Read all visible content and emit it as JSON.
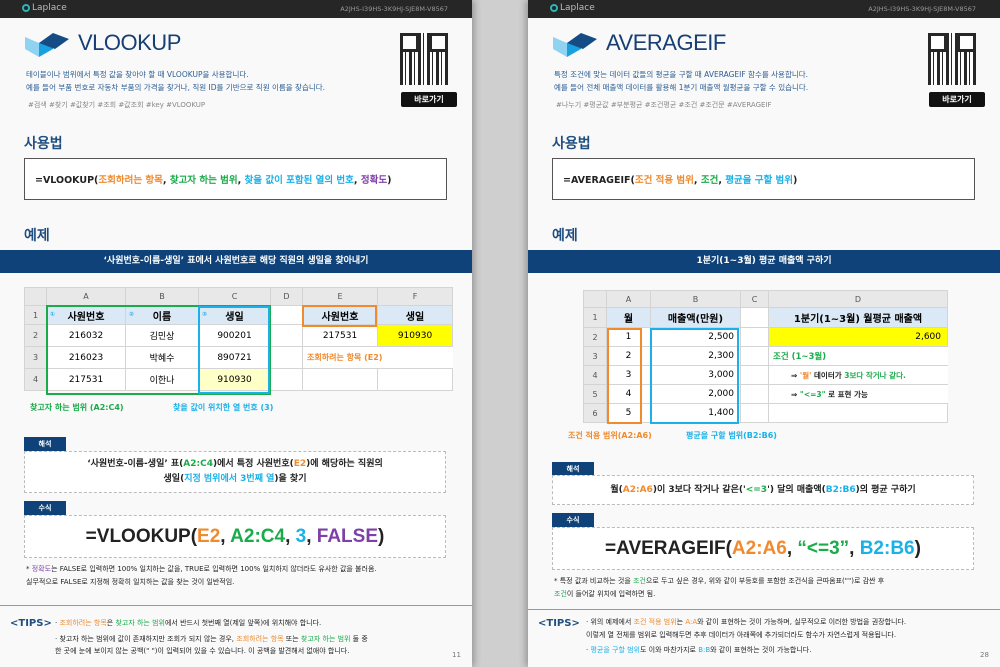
{
  "colors": {
    "navy": "#0e4279",
    "orange": "#f08a2c",
    "green": "#1aab4b",
    "blue": "#1ab0e8",
    "purple": "#7e3fa8",
    "yellow": "#ffff00"
  },
  "header": {
    "brand": "Laplace",
    "code": "A2JHS-I39HS-3K9HJ-SJE8M-V8567"
  },
  "left": {
    "title": "VLOOKUP",
    "desc": [
      "테이블이나 범위에서 특정 값을 찾아야 할 때 VLOOKUP을 사용합니다.",
      "예를 들어 부품 번호로 자동차 부품의 가격을 찾거나, 직원 ID를 기반으로 직원 이름을 찾습니다."
    ],
    "tags": "#검색 #찾기 #값찾기 #조회 #값조회 #key #VLOOKUP",
    "go_button": "바로가기",
    "usage_heading": "사용법",
    "syntax": [
      {
        "t": "=VLOOKUP(",
        "c": "k"
      },
      {
        "t": "조회하려는 항목",
        "c": "o"
      },
      {
        "t": ", ",
        "c": "k"
      },
      {
        "t": "찾고자 하는 범위",
        "c": "g"
      },
      {
        "t": ", ",
        "c": "k"
      },
      {
        "t": "찾을 값이 포함된 열의 번호",
        "c": "b"
      },
      {
        "t": ", ",
        "c": "k"
      },
      {
        "t": "정확도",
        "c": "p"
      },
      {
        "t": ")",
        "c": "k"
      }
    ],
    "example_heading": "예제",
    "banner": "‘사원번호-이름-생일’ 표에서 사원번호로 해당 직원의 생일을 찾아내기",
    "sheet": {
      "cols": [
        "A",
        "B",
        "C",
        "D",
        "E",
        "F"
      ],
      "rows": [
        {
          "n": "1",
          "cells": [
            "사원번호",
            "이름",
            "생일",
            "",
            "사원번호",
            "생일"
          ]
        },
        {
          "n": "2",
          "cells": [
            "216032",
            "김민상",
            "900201",
            "",
            "217531",
            "910930"
          ]
        },
        {
          "n": "3",
          "cells": [
            "216023",
            "박혜수",
            "890721",
            "",
            "조회하려는 항목 (E2)",
            ""
          ]
        },
        {
          "n": "4",
          "cells": [
            "217531",
            "이한나",
            "910930",
            "",
            "",
            ""
          ]
        }
      ],
      "markers": [
        "①",
        "②",
        "③"
      ]
    },
    "caption_range": "찾고자 하는 범위 (A2:C4)",
    "caption_col": "찾을 값이 위치한 열 번호 (3)",
    "interp_tag": "해석",
    "interp": [
      {
        "t": "‘사원번호-이름-생일’ 표(",
        "c": "k"
      },
      {
        "t": "A2:C4",
        "c": "g"
      },
      {
        "t": ")에서 특정 사원번호(",
        "c": "k"
      },
      {
        "t": "E2",
        "c": "o"
      },
      {
        "t": ")에 해당하는 직원의",
        "c": "k"
      },
      {
        "t": "\n생일(",
        "c": "k"
      },
      {
        "t": "지정 범위에서 3번째 열",
        "c": "b"
      },
      {
        "t": ")을 찾기",
        "c": "k"
      }
    ],
    "formula_tag": "수식",
    "formula": [
      {
        "t": "=VLOOKUP(",
        "c": "k"
      },
      {
        "t": "E2",
        "c": "o"
      },
      {
        "t": ", ",
        "c": "k"
      },
      {
        "t": "A2:C4",
        "c": "g"
      },
      {
        "t": ", ",
        "c": "k"
      },
      {
        "t": "3",
        "c": "b"
      },
      {
        "t": ", ",
        "c": "k"
      },
      {
        "t": "FALSE",
        "c": "p"
      },
      {
        "t": ")",
        "c": "k"
      }
    ],
    "note": [
      {
        "t": "* ",
        "c": "k"
      },
      {
        "t": "정확도",
        "c": "p"
      },
      {
        "t": "는 FALSE로 입력하면 100% 일치하는 값을, TRUE로 입력하면 100% 일치하지 않더라도 유사한 값을 불러옴.\n실무적으로 FALSE로 지정해 정확히 일치하는 값을 찾는 것이 일반적임.",
        "c": "k"
      }
    ],
    "tips_label": "<TIPS>",
    "tips": [
      [
        {
          "t": "· ",
          "c": "k"
        },
        {
          "t": "조회하려는 항목",
          "c": "o"
        },
        {
          "t": "은 ",
          "c": "k"
        },
        {
          "t": "찾고자 하는 범위",
          "c": "g"
        },
        {
          "t": "에서 반드시 첫번째 열(제일 앞쪽)에 위치해야 합니다.",
          "c": "k"
        }
      ],
      [
        {
          "t": "· 찾고자 하는 범위에 값이 존재하지만 조회가 되지 않는 경우, ",
          "c": "k"
        },
        {
          "t": "조회하려는 항목",
          "c": "o"
        },
        {
          "t": " 또는 ",
          "c": "k"
        },
        {
          "t": "찾고자 하는 범위",
          "c": "g"
        },
        {
          "t": " 둘 중\n  한 곳에 눈에 보이지 않는 공백(\" \")이 입력되어 있을 수 있습니다. 이 공백을 발견해서 없애야 합니다.",
          "c": "k"
        }
      ]
    ],
    "page_number": "11"
  },
  "right": {
    "title": "AVERAGEIF",
    "desc": [
      "특정 조건에 맞는 데이터 값들의 평균을 구할 때 AVERAGEIF 함수를 사용합니다.",
      "예를 들어 전체 매출액 데이터를 활용해 1분기 매출액 월평균을 구할 수 있습니다."
    ],
    "tags": "#나누기 #평균값 #부분평균 #조건평균 #조건 #조건문 #AVERAGEIF",
    "go_button": "바로가기",
    "usage_heading": "사용법",
    "syntax": [
      {
        "t": "=AVERAGEIF(",
        "c": "k"
      },
      {
        "t": "조건 적용 범위",
        "c": "o"
      },
      {
        "t": ", ",
        "c": "k"
      },
      {
        "t": "조건",
        "c": "g"
      },
      {
        "t": ", ",
        "c": "k"
      },
      {
        "t": "평균을 구할 범위",
        "c": "b"
      },
      {
        "t": ")",
        "c": "k"
      }
    ],
    "example_heading": "예제",
    "banner": "1분기(1~3월) 평균 매출액 구하기",
    "sheet": {
      "cols": [
        "A",
        "B",
        "C",
        "D"
      ],
      "rows": [
        {
          "n": "1",
          "cells": [
            "월",
            "매출액(만원)",
            "",
            "1분기(1~3월) 월평균 매출액"
          ]
        },
        {
          "n": "2",
          "cells": [
            "1",
            "2,500",
            "",
            "2,600"
          ]
        },
        {
          "n": "3",
          "cells": [
            "2",
            "2,300",
            "",
            ""
          ]
        },
        {
          "n": "4",
          "cells": [
            "3",
            "3,000",
            "",
            ""
          ]
        },
        {
          "n": "5",
          "cells": [
            "4",
            "2,000",
            "",
            ""
          ]
        },
        {
          "n": "6",
          "cells": [
            "5",
            "1,400",
            "",
            ""
          ]
        }
      ],
      "cond_title": "조건 (1~3월)",
      "cond_line1": [
        {
          "t": "⇒ ",
          "c": "k"
        },
        {
          "t": "'월'",
          "c": "o"
        },
        {
          "t": " 데이터가 ",
          "c": "k"
        },
        {
          "t": "3보다 작거나 같다.",
          "c": "g"
        }
      ],
      "cond_line2": [
        {
          "t": "⇒ ",
          "c": "k"
        },
        {
          "t": "\"<=3\"",
          "c": "g"
        },
        {
          "t": " 로 표현 가능",
          "c": "k"
        }
      ]
    },
    "caption_range": "조건 적용 범위(A2:A6)",
    "caption_avg": "평균을 구할 범위(B2:B6)",
    "interp_tag": "해석",
    "interp": [
      {
        "t": "월(",
        "c": "k"
      },
      {
        "t": "A2:A6",
        "c": "o"
      },
      {
        "t": ")이 3보다 작거나 같은('",
        "c": "k"
      },
      {
        "t": "<=3",
        "c": "g"
      },
      {
        "t": "') 달의 매출액(",
        "c": "k"
      },
      {
        "t": "B2:B6",
        "c": "b"
      },
      {
        "t": ")의 평균 구하기",
        "c": "k"
      }
    ],
    "formula_tag": "수식",
    "formula": [
      {
        "t": "=AVERAGEIF(",
        "c": "k"
      },
      {
        "t": "A2:A6",
        "c": "o"
      },
      {
        "t": ", ",
        "c": "k"
      },
      {
        "t": "“<=3”",
        "c": "g"
      },
      {
        "t": ", ",
        "c": "k"
      },
      {
        "t": "B2:B6",
        "c": "b"
      },
      {
        "t": ")",
        "c": "k"
      }
    ],
    "note": [
      {
        "t": "* 특정 값과 비교하는 것을 ",
        "c": "k"
      },
      {
        "t": "조건",
        "c": "g"
      },
      {
        "t": "으로 두고 싶은 경우, 위와 같이 부등호를 포함한 조건식을 큰따옴표(\"\")로 감싼 후\n",
        "c": "k"
      },
      {
        "t": "조건",
        "c": "g"
      },
      {
        "t": "이 들어갈 위치에 입력하면 됨.",
        "c": "k"
      }
    ],
    "tips_label": "<TIPS>",
    "tips": [
      [
        {
          "t": "· 위의 예제에서 ",
          "c": "k"
        },
        {
          "t": "조건 적용 범위",
          "c": "o"
        },
        {
          "t": "는 ",
          "c": "k"
        },
        {
          "t": "A:A",
          "c": "o"
        },
        {
          "t": "와 같이 표현하는 것이 가능하며, 실무적으로 이러한 방법을 권장합니다.\n  이렇게 열 전체를 범위로 입력해두면 추후 데이터가 아래쪽에 추가되더라도 함수가 자연스럽게 적용됩니다.",
          "c": "k"
        }
      ],
      [
        {
          "t": "· ",
          "c": "k"
        },
        {
          "t": "평균을 구할 범위",
          "c": "b"
        },
        {
          "t": "도 이와 마찬가지로 ",
          "c": "k"
        },
        {
          "t": "B:B",
          "c": "b"
        },
        {
          "t": "와 같이 표현하는 것이 가능합니다.",
          "c": "k"
        }
      ]
    ],
    "page_number": "28"
  }
}
